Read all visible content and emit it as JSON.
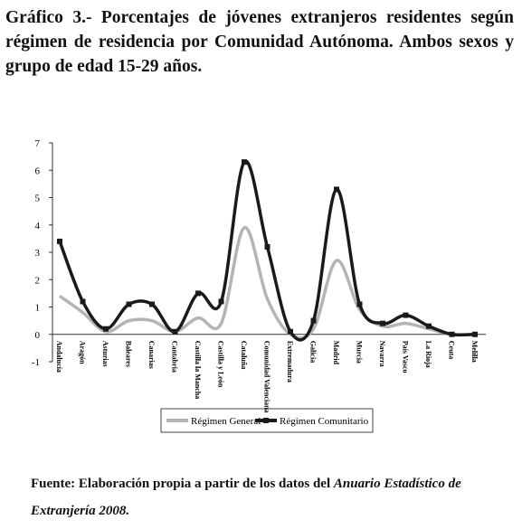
{
  "chart_data": {
    "type": "line",
    "title": "Gráfico 3.- Porcentajes de jóvenes extranjeros residentes según régimen de residencia por Comunidad Autónoma. Ambos sexos y grupo de edad 15-29 años.",
    "categories": [
      "Andalucía",
      "Aragón",
      "Asturias",
      "Baleares",
      "Canarias",
      "Cantabria",
      "Castilla la Mancha",
      "Castilla y León",
      "Cataluña",
      "Comunidad Valenciana",
      "Extremadura",
      "Galicia",
      "Madrid",
      "Murcia",
      "Navarra",
      "País Vasco",
      "La Rioja",
      "Ceuta",
      "Melilla"
    ],
    "series": [
      {
        "name": "Régimen General",
        "color": "#b4b4b4",
        "values": [
          1.4,
          0.8,
          0.1,
          0.5,
          0.5,
          0.1,
          0.6,
          0.4,
          3.9,
          1.3,
          0.0,
          0.2,
          2.7,
          0.9,
          0.3,
          0.4,
          0.2,
          0.0,
          0.0
        ]
      },
      {
        "name": "Régimen Comunitario",
        "color": "#1a1a1a",
        "values": [
          3.4,
          1.2,
          0.2,
          1.1,
          1.1,
          0.1,
          1.5,
          1.2,
          6.3,
          3.2,
          0.1,
          0.5,
          5.3,
          1.1,
          0.4,
          0.7,
          0.3,
          0.0,
          0.0
        ]
      }
    ],
    "ylim": [
      -1,
      7
    ],
    "yticks": [
      -1,
      0,
      1,
      2,
      3,
      4,
      5,
      6,
      7
    ],
    "source": "Fuente: Elaboración propia a partir de los datos del",
    "source_italic": "Anuario Estadístico de Extranjería 2008."
  }
}
